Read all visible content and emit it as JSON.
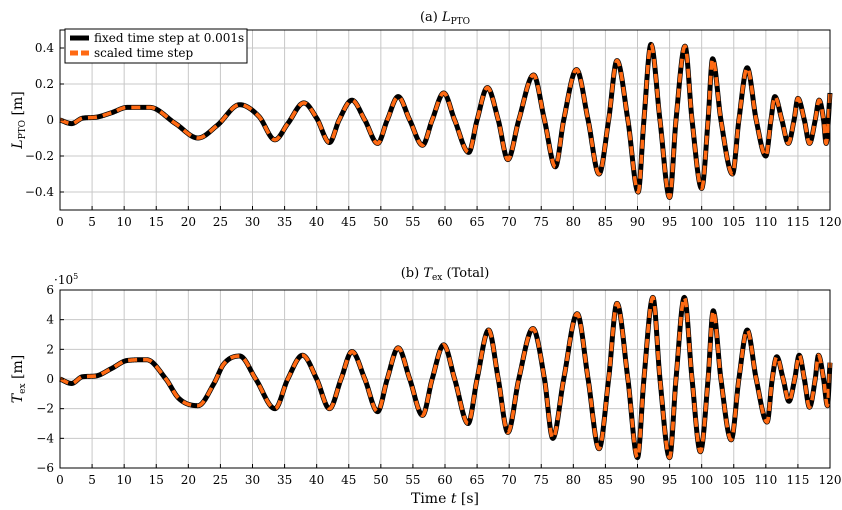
{
  "chart_data": [
    {
      "type": "line",
      "title_prefix": "(a) ",
      "title_symbol": "L",
      "title_sub": "PTO",
      "title_suffix": "",
      "xlabel": "",
      "ylabel_symbol": "L",
      "ylabel_sub": "PTO",
      "ylabel_unit": " [m]",
      "xlim": [
        0,
        120
      ],
      "ylim": [
        -0.5,
        0.5
      ],
      "xticks": [
        0,
        5,
        10,
        15,
        20,
        25,
        30,
        35,
        40,
        45,
        50,
        55,
        60,
        65,
        70,
        75,
        80,
        85,
        90,
        95,
        100,
        105,
        110,
        115,
        120
      ],
      "yticks": [
        -0.4,
        -0.2,
        0,
        0.2,
        0.4
      ],
      "ytick_labels": [
        "−0.4",
        "−0.2",
        "0",
        "0.2",
        "0.4"
      ],
      "grid": true,
      "legend_position": "top-left",
      "series": [
        {
          "name": "fixed time step at 0.001s",
          "color": "#000000",
          "dash": ""
        },
        {
          "name": "scaled time step",
          "color": "#ff6a13",
          "dash": "9,6"
        }
      ],
      "extrema": [
        [
          0,
          0
        ],
        [
          1.8,
          -0.02
        ],
        [
          3.5,
          0.01
        ],
        [
          5.5,
          0.015
        ],
        [
          8,
          0.04
        ],
        [
          10.5,
          0.07
        ],
        [
          14,
          0.07
        ],
        [
          18,
          -0.02
        ],
        [
          21.5,
          -0.1
        ],
        [
          24.5,
          -0.03
        ],
        [
          28,
          0.085
        ],
        [
          31,
          0.02
        ],
        [
          33.5,
          -0.11
        ],
        [
          35.5,
          -0.02
        ],
        [
          38,
          0.095
        ],
        [
          40,
          0.01
        ],
        [
          42,
          -0.125
        ],
        [
          43.5,
          0
        ],
        [
          45.5,
          0.11
        ],
        [
          47.5,
          0
        ],
        [
          49.5,
          -0.13
        ],
        [
          51,
          0
        ],
        [
          52.7,
          0.13
        ],
        [
          54.5,
          0
        ],
        [
          56.5,
          -0.14
        ],
        [
          58,
          0
        ],
        [
          59.8,
          0.15
        ],
        [
          61.5,
          0
        ],
        [
          63.7,
          -0.18
        ],
        [
          65,
          0
        ],
        [
          66.6,
          0.18
        ],
        [
          68.3,
          0
        ],
        [
          69.8,
          -0.22
        ],
        [
          71.5,
          0
        ],
        [
          73.8,
          0.25
        ],
        [
          75.5,
          0
        ],
        [
          77.2,
          -0.26
        ],
        [
          78.5,
          0
        ],
        [
          80.5,
          0.28
        ],
        [
          82.3,
          0
        ],
        [
          84,
          -0.3
        ],
        [
          85.5,
          0
        ],
        [
          86.8,
          0.33
        ],
        [
          88.5,
          0
        ],
        [
          90.1,
          -0.4
        ],
        [
          91,
          0
        ],
        [
          92.1,
          0.42
        ],
        [
          93.5,
          0
        ],
        [
          95,
          -0.43
        ],
        [
          96,
          0
        ],
        [
          97.4,
          0.41
        ],
        [
          98.5,
          0
        ],
        [
          100,
          -0.38
        ],
        [
          101,
          0
        ],
        [
          101.7,
          0.34
        ],
        [
          103,
          0
        ],
        [
          104.8,
          -0.3
        ],
        [
          105.8,
          0
        ],
        [
          107.1,
          0.29
        ],
        [
          108.5,
          0
        ],
        [
          110,
          -0.2
        ],
        [
          110.8,
          0
        ],
        [
          111.4,
          0.13
        ],
        [
          112.5,
          0
        ],
        [
          113.5,
          -0.13
        ],
        [
          114.4,
          0
        ],
        [
          115,
          0.12
        ],
        [
          116,
          0
        ],
        [
          116.8,
          -0.13
        ],
        [
          117.7,
          0
        ],
        [
          118.3,
          0.11
        ],
        [
          119,
          0
        ],
        [
          119.4,
          -0.13
        ],
        [
          120,
          0.15
        ]
      ]
    },
    {
      "type": "line",
      "title_prefix": "(b) ",
      "title_symbol": "T",
      "title_sub": "ex",
      "title_suffix": " (Total)",
      "xlabel_text": "Time ",
      "xlabel_symbol": "t",
      "xlabel_unit": " [s]",
      "ylabel_symbol": "T",
      "ylabel_sub": "ex",
      "ylabel_unit": " [m]",
      "scale_label_base": "·10",
      "scale_label_exp": "5",
      "xlim": [
        0,
        120
      ],
      "ylim": [
        -6,
        6
      ],
      "xticks": [
        0,
        5,
        10,
        15,
        20,
        25,
        30,
        35,
        40,
        45,
        50,
        55,
        60,
        65,
        70,
        75,
        80,
        85,
        90,
        95,
        100,
        105,
        110,
        115,
        120
      ],
      "yticks": [
        -6,
        -4,
        -2,
        0,
        2,
        4,
        6
      ],
      "ytick_labels": [
        "−6",
        "−4",
        "−2",
        "0",
        "2",
        "4",
        "6"
      ],
      "grid": true,
      "series": [
        {
          "name": "fixed time step at 0.001s",
          "color": "#000000",
          "dash": ""
        },
        {
          "name": "scaled time step",
          "color": "#ff6a13",
          "dash": "9,6"
        }
      ],
      "extrema": [
        [
          0,
          0
        ],
        [
          1.8,
          -0.3
        ],
        [
          3.5,
          0.15
        ],
        [
          5.5,
          0.2
        ],
        [
          8,
          0.7
        ],
        [
          10.5,
          1.25
        ],
        [
          13.5,
          1.3
        ],
        [
          16.5,
          0
        ],
        [
          18.5,
          -1.3
        ],
        [
          21.5,
          -1.8
        ],
        [
          24,
          -0.3
        ],
        [
          25.5,
          1.0
        ],
        [
          28,
          1.55
        ],
        [
          30.5,
          0
        ],
        [
          33.5,
          -2.0
        ],
        [
          35.5,
          0
        ],
        [
          37.8,
          1.6
        ],
        [
          40,
          0
        ],
        [
          42,
          -2.0
        ],
        [
          43.8,
          0
        ],
        [
          45.5,
          1.85
        ],
        [
          47.5,
          0
        ],
        [
          49.5,
          -2.2
        ],
        [
          51,
          0
        ],
        [
          52.7,
          2.1
        ],
        [
          54.5,
          0
        ],
        [
          56.5,
          -2.45
        ],
        [
          58,
          0
        ],
        [
          59.8,
          2.3
        ],
        [
          61.5,
          0
        ],
        [
          63.6,
          -3.0
        ],
        [
          65,
          0
        ],
        [
          66.8,
          3.3
        ],
        [
          68.3,
          0
        ],
        [
          69.8,
          -3.6
        ],
        [
          71.5,
          0
        ],
        [
          73.7,
          3.4
        ],
        [
          75.5,
          0
        ],
        [
          76.8,
          -4.0
        ],
        [
          78.5,
          0
        ],
        [
          80.6,
          4.4
        ],
        [
          82.3,
          0
        ],
        [
          84,
          -4.7
        ],
        [
          85.5,
          0
        ],
        [
          86.8,
          5.1
        ],
        [
          88.5,
          0
        ],
        [
          90,
          -5.3
        ],
        [
          91,
          0
        ],
        [
          92.4,
          5.5
        ],
        [
          93.5,
          0
        ],
        [
          95,
          -5.3
        ],
        [
          96,
          0
        ],
        [
          97.3,
          5.5
        ],
        [
          98.5,
          0
        ],
        [
          99.8,
          -4.9
        ],
        [
          101,
          0
        ],
        [
          101.8,
          4.6
        ],
        [
          103,
          0
        ],
        [
          104.6,
          -4.1
        ],
        [
          105.8,
          0
        ],
        [
          107.1,
          3.3
        ],
        [
          108.5,
          0
        ],
        [
          110.2,
          -2.9
        ],
        [
          111,
          0
        ],
        [
          111.7,
          1.5
        ],
        [
          112.7,
          0
        ],
        [
          113.6,
          -1.5
        ],
        [
          114.5,
          0
        ],
        [
          115.2,
          1.6
        ],
        [
          116,
          0
        ],
        [
          116.8,
          -1.9
        ],
        [
          117.7,
          0
        ],
        [
          118.2,
          1.6
        ],
        [
          119,
          0
        ],
        [
          119.6,
          -1.8
        ],
        [
          120,
          1.1
        ]
      ]
    }
  ]
}
